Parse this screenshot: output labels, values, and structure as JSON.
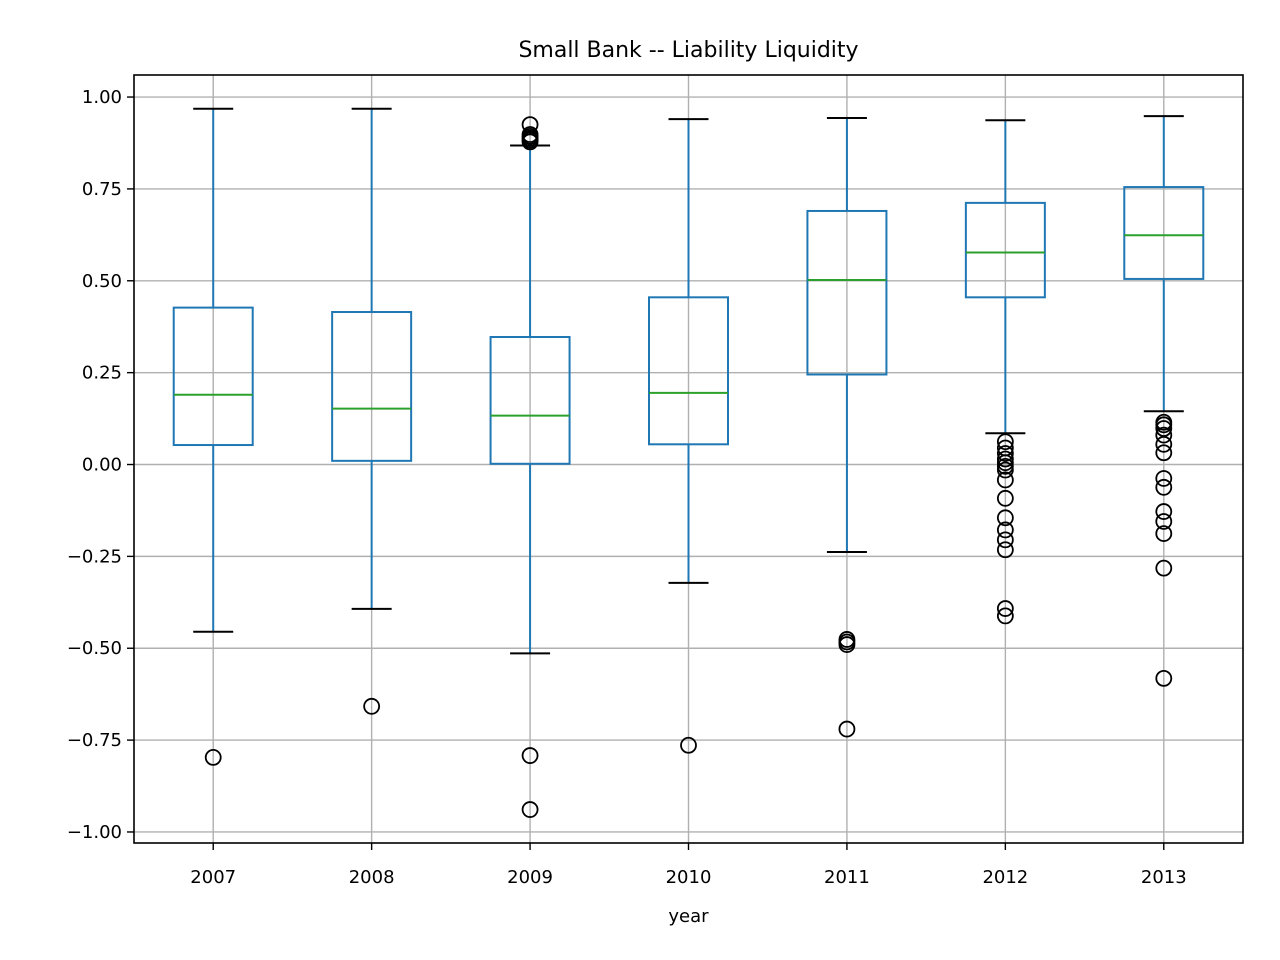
{
  "chart_data": {
    "type": "box",
    "title": "Small Bank -- Liability Liquidity",
    "xlabel": "year",
    "ylabel": "",
    "ylim": [
      -1.03,
      1.06
    ],
    "yticks": [
      1.0,
      0.75,
      0.5,
      0.25,
      0.0,
      -0.25,
      -0.5,
      -0.75,
      -1.0
    ],
    "ytick_labels": [
      "1.00",
      "0.75",
      "0.50",
      "0.25",
      "0.00",
      "−0.25",
      "−0.50",
      "−0.75",
      "−1.00"
    ],
    "grid": true,
    "categories": [
      "2007",
      "2008",
      "2009",
      "2010",
      "2011",
      "2012",
      "2013"
    ],
    "boxes": [
      {
        "whisker_low": -0.455,
        "q1": 0.053,
        "median": 0.19,
        "q3": 0.427,
        "whisker_high": 0.968,
        "outliers": [
          -0.797
        ]
      },
      {
        "whisker_low": -0.393,
        "q1": 0.01,
        "median": 0.152,
        "q3": 0.415,
        "whisker_high": 0.968,
        "outliers": [
          -0.658
        ]
      },
      {
        "whisker_low": -0.514,
        "q1": 0.002,
        "median": 0.133,
        "q3": 0.347,
        "whisker_high": 0.868,
        "outliers": [
          0.925,
          0.898,
          0.893,
          0.888,
          0.883,
          0.878,
          -0.792,
          -0.939
        ]
      },
      {
        "whisker_low": -0.322,
        "q1": 0.055,
        "median": 0.195,
        "q3": 0.455,
        "whisker_high": 0.94,
        "outliers": [
          -0.764
        ]
      },
      {
        "whisker_low": -0.238,
        "q1": 0.245,
        "median": 0.502,
        "q3": 0.69,
        "whisker_high": 0.943,
        "outliers": [
          -0.476,
          -0.483,
          -0.49,
          -0.72
        ]
      },
      {
        "whisker_low": 0.085,
        "q1": 0.455,
        "median": 0.577,
        "q3": 0.712,
        "whisker_high": 0.937,
        "outliers": [
          0.062,
          0.045,
          0.03,
          0.015,
          0.005,
          -0.005,
          -0.015,
          -0.042,
          -0.092,
          -0.145,
          -0.178,
          -0.205,
          -0.232,
          -0.392,
          -0.412
        ]
      },
      {
        "whisker_low": 0.145,
        "q1": 0.505,
        "median": 0.624,
        "q3": 0.755,
        "whisker_high": 0.948,
        "outliers": [
          0.115,
          0.108,
          0.098,
          0.08,
          0.055,
          0.032,
          -0.038,
          -0.062,
          -0.128,
          -0.155,
          -0.188,
          -0.282,
          -0.582
        ]
      }
    ]
  },
  "colors": {
    "box": "#1f77b4",
    "median": "#2ca02c",
    "whisker_cap": "#000000",
    "outlier": "#000000",
    "grid": "#b0b0b0",
    "axes": "#000000"
  }
}
